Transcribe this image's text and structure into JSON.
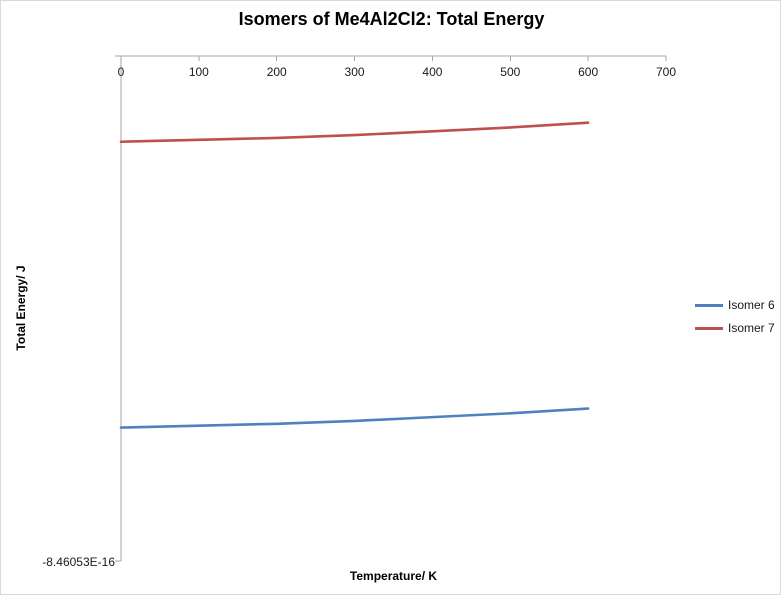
{
  "chart_data": {
    "type": "line",
    "title": "Isomers of Me4Al2Cl2: Total Energy",
    "xlabel": "Temperature/ K",
    "ylabel": "Total Energy/ J",
    "x_ticks": [
      0,
      100,
      200,
      300,
      400,
      500,
      600,
      700
    ],
    "xlim": [
      0,
      700
    ],
    "ylim": [
      -8.46053e-16,
      -8.46e-16
    ],
    "y_tick_label": "-8.46053E-16",
    "grid": false,
    "legend_position": "right",
    "x": [
      0,
      100,
      200,
      300,
      400,
      500,
      600
    ],
    "series": [
      {
        "name": "Isomer 6",
        "color": "#4F81BD",
        "values": [
          -8.46039e-16,
          -8.460388e-16,
          -8.460386e-16,
          -8.460383e-16,
          -8.460379e-16,
          -8.460375e-16,
          -8.46037e-16
        ]
      },
      {
        "name": "Isomer 7",
        "color": "#C0504D",
        "values": [
          -8.46009e-16,
          -8.460088e-16,
          -8.460086e-16,
          -8.460083e-16,
          -8.460079e-16,
          -8.460075e-16,
          -8.46007e-16
        ]
      }
    ],
    "colors": {
      "axis": "#a6a6a6",
      "isomer6": "#4F81BD",
      "isomer7": "#C0504D"
    }
  }
}
